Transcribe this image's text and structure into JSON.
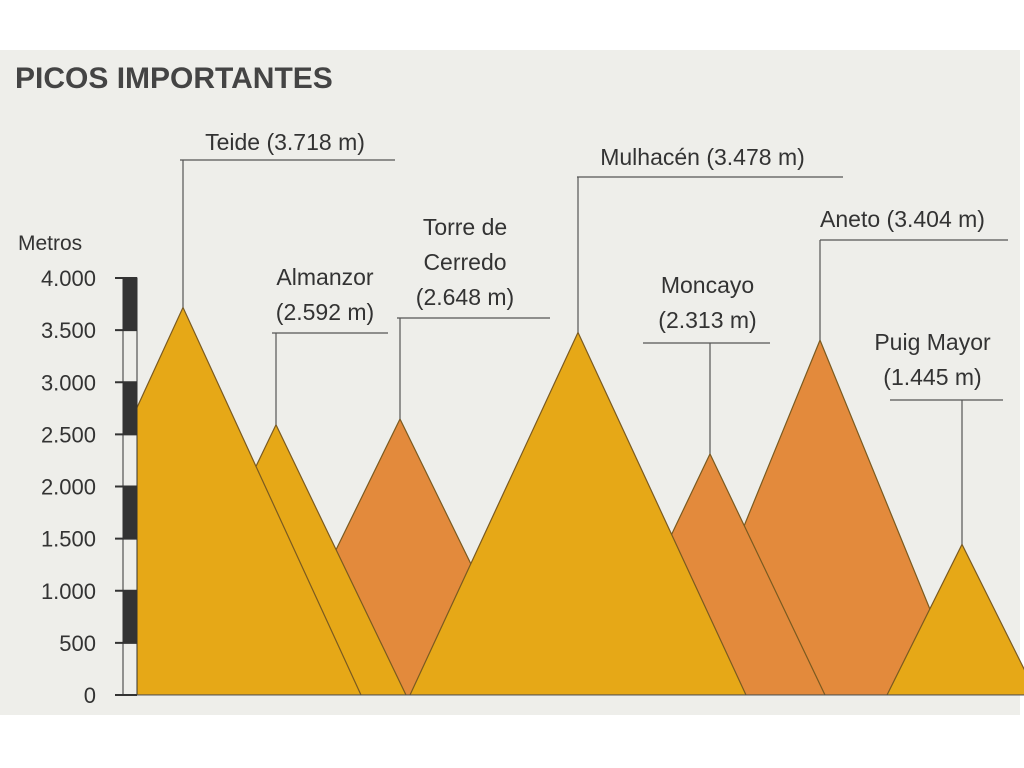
{
  "chart_data": {
    "type": "mountain",
    "title": "PICOS IMPORTANTES",
    "y_label": "Metros",
    "categories": [
      "Teide",
      "Almanzor",
      "Torre de Cerredo",
      "Mulhacén",
      "Moncayo",
      "Aneto",
      "Puig Mayor"
    ],
    "values": [
      3718,
      2592,
      2648,
      3478,
      2313,
      3404,
      1445
    ],
    "value_labels": [
      "(3.718 m)",
      "(2.592 m)",
      "(2.648 m)",
      "(3.478 m)",
      "(2.313 m)",
      "(3.404 m)",
      "(1.445 m)"
    ],
    "colors": [
      "#e6a817",
      "#e6a817",
      "#e38a3c",
      "#e6a817",
      "#e38a3c",
      "#e38a3c",
      "#e6a817"
    ],
    "ylim": [
      0,
      4000
    ],
    "yticks": [
      0,
      500,
      {
        "value": 1000,
        "label": "1.000"
      },
      {
        "value": 1500,
        "label": "1.500"
      },
      {
        "value": 2000,
        "label": "2.000"
      },
      {
        "value": 2500,
        "label": "2.500"
      },
      {
        "value": 3000,
        "label": "3.000"
      },
      {
        "value": 3500,
        "label": "3.500"
      },
      {
        "value": 4000,
        "label": "4.000"
      }
    ]
  }
}
